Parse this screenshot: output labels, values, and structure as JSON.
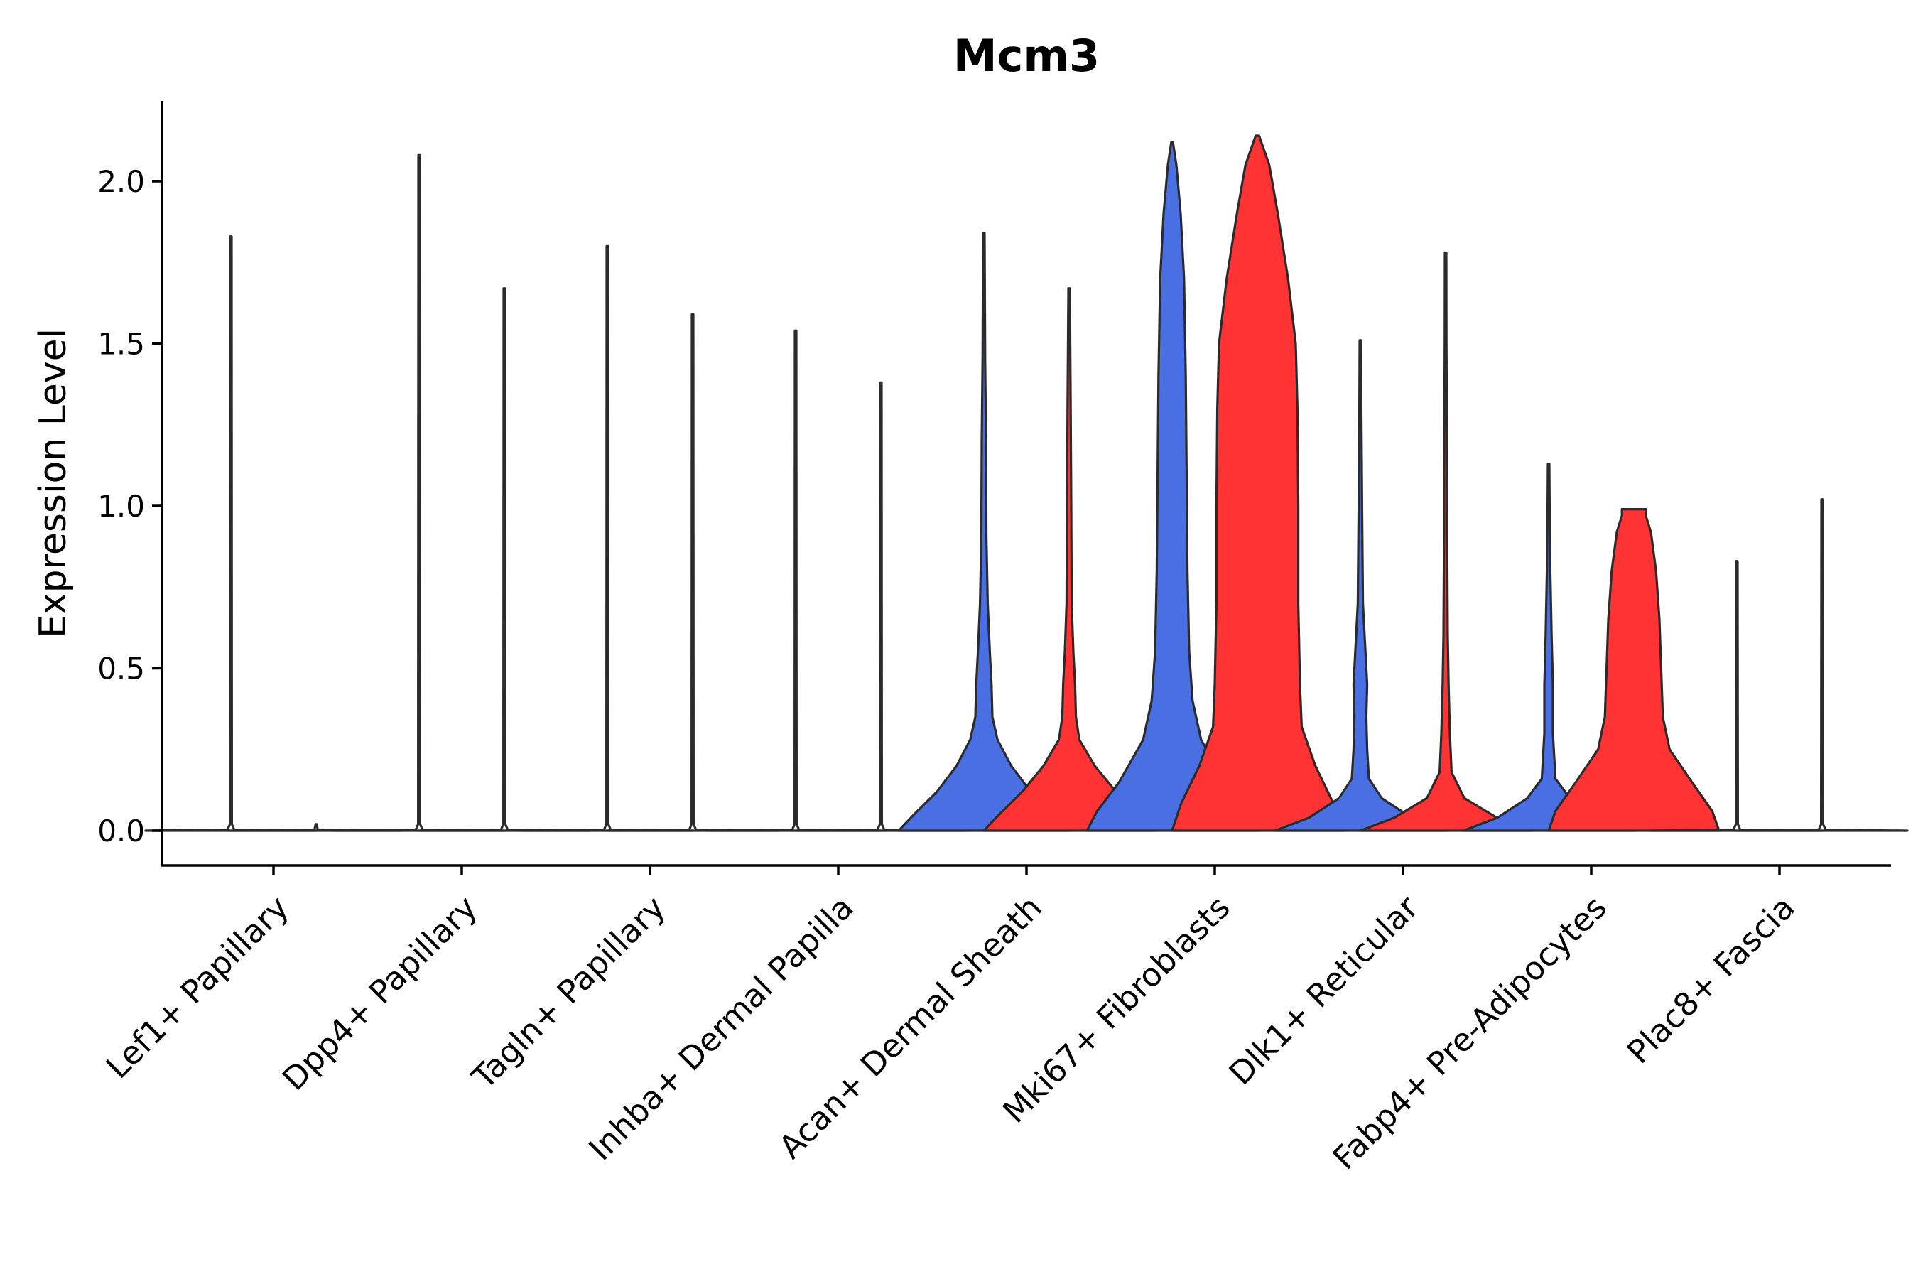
{
  "chart_data": {
    "type": "violin",
    "title": "Mcm3",
    "xlabel": "",
    "ylabel": "Expression Level",
    "ylim": [
      -0.11,
      2.25
    ],
    "yticks": [
      0.0,
      0.5,
      1.0,
      1.5,
      2.0
    ],
    "ytick_labels": [
      "0.0",
      "0.5",
      "1.0",
      "1.5",
      "2.0"
    ],
    "grid": false,
    "legend": "none",
    "colors": {
      "group1": "#4a6fe3",
      "group2": "#ff3333",
      "outline": "#2b2b2b"
    },
    "categories": [
      "Lef1+ Papillary",
      "Dpp4+ Papillary",
      "Tagln+ Papillary",
      "Inhba+ Dermal Papilla",
      "Acan+ Dermal Sheath",
      "Mki67+ Fibroblasts",
      "Dlk1+ Reticular",
      "Fabp4+ Pre-Adipocytes",
      "Plac8+ Fascia"
    ],
    "series": [
      {
        "name": "group1",
        "color": "#4a6fe3",
        "max_values": [
          1.83,
          2.08,
          1.8,
          1.54,
          1.84,
          2.12,
          1.51,
          1.13,
          0.83
        ]
      },
      {
        "name": "group2",
        "color": "#ff3333",
        "max_values": [
          0.0,
          1.67,
          1.59,
          1.38,
          1.67,
          2.14,
          1.78,
          0.99,
          1.02
        ]
      }
    ],
    "violins": [
      {
        "category": "Lef1+ Papillary",
        "group": "group1",
        "fill": "none",
        "profile": [
          [
            0,
            1
          ],
          [
            0.003,
            0.04
          ],
          [
            0.02,
            0.012
          ],
          [
            1.83,
            0.008
          ]
        ]
      },
      {
        "category": "Lef1+ Papillary",
        "group": "group2",
        "fill": "none",
        "profile": [
          [
            0,
            1
          ],
          [
            0.003,
            0.02
          ],
          [
            0.02,
            0.005
          ]
        ]
      },
      {
        "category": "Dpp4+ Papillary",
        "group": "group1",
        "fill": "none",
        "profile": [
          [
            0,
            1
          ],
          [
            0.003,
            0.04
          ],
          [
            0.02,
            0.012
          ],
          [
            2.08,
            0.008
          ]
        ]
      },
      {
        "category": "Dpp4+ Papillary",
        "group": "group2",
        "fill": "none",
        "profile": [
          [
            0,
            1
          ],
          [
            0.003,
            0.04
          ],
          [
            0.02,
            0.012
          ],
          [
            1.67,
            0.008
          ]
        ]
      },
      {
        "category": "Tagln+ Papillary",
        "group": "group1",
        "fill": "none",
        "profile": [
          [
            0,
            1
          ],
          [
            0.003,
            0.04
          ],
          [
            0.02,
            0.012
          ],
          [
            1.8,
            0.008
          ]
        ]
      },
      {
        "category": "Tagln+ Papillary",
        "group": "group2",
        "fill": "none",
        "profile": [
          [
            0,
            1
          ],
          [
            0.003,
            0.04
          ],
          [
            0.02,
            0.012
          ],
          [
            1.59,
            0.008
          ]
        ]
      },
      {
        "category": "Inhba+ Dermal Papilla",
        "group": "group1",
        "fill": "none",
        "profile": [
          [
            0,
            1
          ],
          [
            0.003,
            0.04
          ],
          [
            0.02,
            0.012
          ],
          [
            1.54,
            0.008
          ]
        ]
      },
      {
        "category": "Inhba+ Dermal Papilla",
        "group": "group2",
        "fill": "none",
        "profile": [
          [
            0,
            1
          ],
          [
            0.003,
            0.04
          ],
          [
            0.02,
            0.012
          ],
          [
            1.38,
            0.008
          ]
        ]
      },
      {
        "category": "Acan+ Dermal Sheath",
        "group": "group1",
        "fill": "group1",
        "profile": [
          [
            0,
            1
          ],
          [
            0.05,
            0.82
          ],
          [
            0.12,
            0.55
          ],
          [
            0.2,
            0.32
          ],
          [
            0.28,
            0.16
          ],
          [
            0.35,
            0.1
          ],
          [
            0.45,
            0.09
          ],
          [
            0.55,
            0.07
          ],
          [
            0.7,
            0.045
          ],
          [
            0.9,
            0.03
          ],
          [
            1.2,
            0.025
          ],
          [
            1.45,
            0.015
          ],
          [
            1.84,
            0.008
          ]
        ]
      },
      {
        "category": "Acan+ Dermal Sheath",
        "group": "group2",
        "fill": "group2",
        "profile": [
          [
            0,
            1
          ],
          [
            0.05,
            0.82
          ],
          [
            0.12,
            0.55
          ],
          [
            0.2,
            0.3
          ],
          [
            0.28,
            0.12
          ],
          [
            0.35,
            0.08
          ],
          [
            0.45,
            0.07
          ],
          [
            0.55,
            0.05
          ],
          [
            0.7,
            0.03
          ],
          [
            1.0,
            0.025
          ],
          [
            1.3,
            0.018
          ],
          [
            1.67,
            0.008
          ]
        ]
      },
      {
        "category": "Mki67+ Fibroblasts",
        "group": "group1",
        "fill": "group1",
        "profile": [
          [
            0,
            1
          ],
          [
            0.06,
            0.88
          ],
          [
            0.15,
            0.62
          ],
          [
            0.28,
            0.34
          ],
          [
            0.4,
            0.24
          ],
          [
            0.55,
            0.2
          ],
          [
            0.8,
            0.18
          ],
          [
            1.1,
            0.17
          ],
          [
            1.4,
            0.16
          ],
          [
            1.7,
            0.14
          ],
          [
            1.9,
            0.1
          ],
          [
            2.05,
            0.05
          ],
          [
            2.12,
            0.01
          ]
        ]
      },
      {
        "category": "Mki67+ Fibroblasts",
        "group": "group2",
        "fill": "group2",
        "profile": [
          [
            0,
            1
          ],
          [
            0.08,
            0.9
          ],
          [
            0.2,
            0.68
          ],
          [
            0.32,
            0.52
          ],
          [
            0.45,
            0.5
          ],
          [
            0.7,
            0.48
          ],
          [
            1.0,
            0.48
          ],
          [
            1.3,
            0.47
          ],
          [
            1.5,
            0.45
          ],
          [
            1.7,
            0.36
          ],
          [
            1.9,
            0.24
          ],
          [
            2.05,
            0.14
          ],
          [
            2.14,
            0.02
          ]
        ]
      },
      {
        "category": "Dlk1+ Reticular",
        "group": "group1",
        "fill": "group1",
        "profile": [
          [
            0,
            1
          ],
          [
            0.04,
            0.6
          ],
          [
            0.1,
            0.25
          ],
          [
            0.16,
            0.1
          ],
          [
            0.25,
            0.08
          ],
          [
            0.35,
            0.07
          ],
          [
            0.45,
            0.08
          ],
          [
            0.55,
            0.06
          ],
          [
            0.7,
            0.03
          ],
          [
            1.0,
            0.02
          ],
          [
            1.3,
            0.012
          ],
          [
            1.51,
            0.008
          ]
        ]
      },
      {
        "category": "Dlk1+ Reticular",
        "group": "group2",
        "fill": "group2",
        "profile": [
          [
            0,
            1
          ],
          [
            0.04,
            0.6
          ],
          [
            0.1,
            0.22
          ],
          [
            0.18,
            0.07
          ],
          [
            0.3,
            0.05
          ],
          [
            0.45,
            0.035
          ],
          [
            0.6,
            0.025
          ],
          [
            0.9,
            0.018
          ],
          [
            1.2,
            0.015
          ],
          [
            1.5,
            0.01
          ],
          [
            1.78,
            0.008
          ]
        ]
      },
      {
        "category": "Fabp4+ Pre-Adipocytes",
        "group": "group1",
        "fill": "group1",
        "profile": [
          [
            0,
            1
          ],
          [
            0.04,
            0.6
          ],
          [
            0.1,
            0.25
          ],
          [
            0.16,
            0.08
          ],
          [
            0.3,
            0.05
          ],
          [
            0.45,
            0.05
          ],
          [
            0.6,
            0.035
          ],
          [
            0.8,
            0.02
          ],
          [
            1.0,
            0.012
          ],
          [
            1.13,
            0.008
          ]
        ]
      },
      {
        "category": "Fabp4+ Pre-Adipocytes",
        "group": "group2",
        "fill": "group2",
        "profile": [
          [
            0,
            1
          ],
          [
            0.06,
            0.92
          ],
          [
            0.15,
            0.68
          ],
          [
            0.25,
            0.42
          ],
          [
            0.35,
            0.34
          ],
          [
            0.5,
            0.32
          ],
          [
            0.65,
            0.3
          ],
          [
            0.8,
            0.26
          ],
          [
            0.92,
            0.2
          ],
          [
            0.97,
            0.14
          ],
          [
            0.99,
            0.14
          ]
        ]
      },
      {
        "category": "Plac8+ Fascia",
        "group": "group1",
        "fill": "none",
        "profile": [
          [
            0,
            1
          ],
          [
            0.003,
            0.04
          ],
          [
            0.02,
            0.012
          ],
          [
            0.83,
            0.008
          ]
        ]
      },
      {
        "category": "Plac8+ Fascia",
        "group": "group2",
        "fill": "none",
        "profile": [
          [
            0,
            1
          ],
          [
            0.003,
            0.04
          ],
          [
            0.02,
            0.012
          ],
          [
            1.02,
            0.008
          ]
        ]
      }
    ]
  }
}
